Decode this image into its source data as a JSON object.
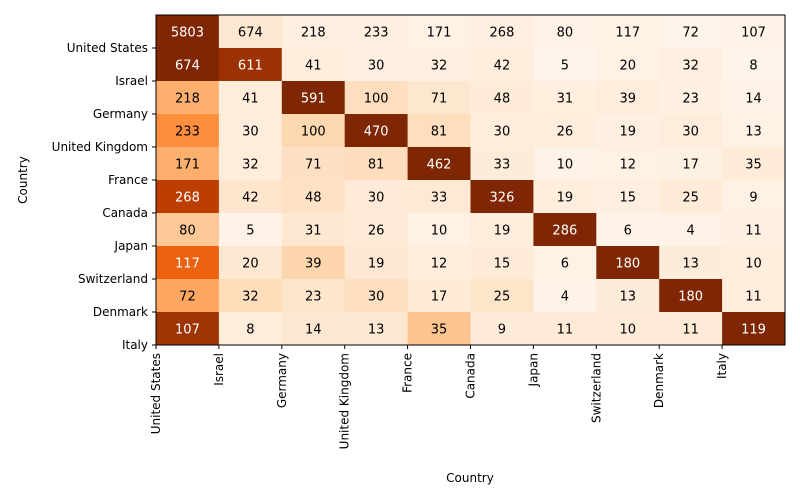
{
  "chart_data": {
    "type": "heatmap",
    "title": "",
    "xlabel": "Country",
    "ylabel": "Country",
    "colormap": "Oranges",
    "grid": false,
    "x_categories": [
      "United States",
      "Israel",
      "Germany",
      "United Kingdom",
      "France",
      "Canada",
      "Japan",
      "Switzerland",
      "Denmark",
      "Italy"
    ],
    "y_categories": [
      "United States",
      "Israel",
      "Germany",
      "United Kingdom",
      "France",
      "Canada",
      "Japan",
      "Switzerland",
      "Denmark",
      "Italy"
    ],
    "values": [
      [
        5803,
        674,
        218,
        233,
        171,
        268,
        80,
        117,
        72,
        107
      ],
      [
        674,
        611,
        41,
        30,
        32,
        42,
        5,
        20,
        32,
        8
      ],
      [
        218,
        41,
        591,
        100,
        71,
        48,
        31,
        39,
        23,
        14
      ],
      [
        233,
        30,
        100,
        470,
        81,
        30,
        26,
        19,
        30,
        13
      ],
      [
        171,
        32,
        71,
        81,
        462,
        33,
        10,
        12,
        17,
        35
      ],
      [
        268,
        42,
        48,
        30,
        33,
        326,
        19,
        15,
        25,
        9
      ],
      [
        80,
        5,
        31,
        26,
        10,
        19,
        286,
        6,
        4,
        11
      ],
      [
        117,
        20,
        39,
        19,
        12,
        15,
        6,
        180,
        13,
        10
      ],
      [
        72,
        32,
        23,
        30,
        17,
        25,
        4,
        13,
        180,
        11
      ],
      [
        107,
        8,
        14,
        13,
        35,
        9,
        11,
        10,
        11,
        119
      ]
    ]
  }
}
